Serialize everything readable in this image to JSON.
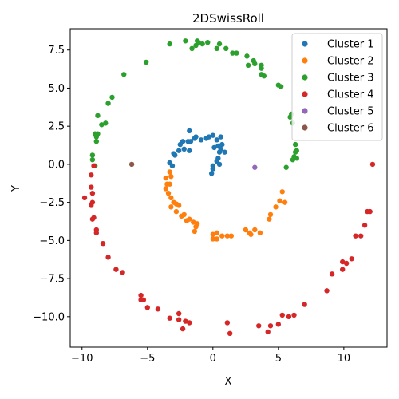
{
  "chart_data": {
    "type": "scatter",
    "title": "2DSwissRoll",
    "xlabel": "X",
    "ylabel": "Y",
    "xlim": [
      -10.9,
      13.3
    ],
    "ylim": [
      -12.0,
      8.9
    ],
    "xticks": [
      -10,
      -5,
      0,
      5,
      10
    ],
    "yticks": [
      -10.0,
      -7.5,
      -5.0,
      -2.5,
      0.0,
      2.5,
      5.0,
      7.5
    ],
    "ytick_labels": [
      "−10.0",
      "−7.5",
      "−5.0",
      "−2.5",
      "0.0",
      "2.5",
      "5.0",
      "7.5"
    ],
    "xtick_labels": [
      "−10",
      "−5",
      "0",
      "5",
      "10"
    ],
    "grid": false,
    "legend_position": "top-right",
    "series": [
      {
        "name": "Cluster 1",
        "color": "#1f77b4",
        "points": [
          [
            0.6,
            1.8
          ],
          [
            0.3,
            1.6
          ],
          [
            0.7,
            1.3
          ],
          [
            0.4,
            1.2
          ],
          [
            0.6,
            1.0
          ],
          [
            0.5,
            0.8
          ],
          [
            0.9,
            0.8
          ],
          [
            0.4,
            0.4
          ],
          [
            0.3,
            0.2
          ],
          [
            0.5,
            0.0
          ],
          [
            0.0,
            -0.1
          ],
          [
            0.0,
            -0.3
          ],
          [
            -0.1,
            -0.6
          ],
          [
            0.1,
            1.1
          ],
          [
            -0.3,
            1.8
          ],
          [
            0.0,
            1.9
          ],
          [
            -0.5,
            1.7
          ],
          [
            -0.9,
            1.6
          ],
          [
            -1.3,
            1.8
          ],
          [
            -1.4,
            1.7
          ],
          [
            -1.7,
            1.5
          ],
          [
            -1.9,
            1.5
          ],
          [
            -1.8,
            2.2
          ],
          [
            -2.3,
            1.5
          ],
          [
            -2.5,
            1.3
          ],
          [
            -2.2,
            1.0
          ],
          [
            -2.6,
            0.9
          ],
          [
            -2.9,
            0.6
          ],
          [
            -3.0,
            0.7
          ],
          [
            -3.3,
            0.1
          ],
          [
            -3.1,
            -0.1
          ],
          [
            -1.8,
            0.9
          ]
        ]
      },
      {
        "name": "Cluster 2",
        "color": "#ff7f0e",
        "points": [
          [
            -3.6,
            -0.9
          ],
          [
            -3.3,
            -0.5
          ],
          [
            -3.2,
            -0.8
          ],
          [
            -3.5,
            -1.3
          ],
          [
            -3.6,
            -1.6
          ],
          [
            -3.4,
            -1.9
          ],
          [
            -3.2,
            -2.2
          ],
          [
            -3.0,
            -2.5
          ],
          [
            -2.8,
            -2.6
          ],
          [
            -3.2,
            -2.8
          ],
          [
            -2.8,
            -3.1
          ],
          [
            -2.4,
            -3.4
          ],
          [
            -2.2,
            -3.3
          ],
          [
            -2.0,
            -3.7
          ],
          [
            -1.8,
            -3.6
          ],
          [
            -1.5,
            -3.8
          ],
          [
            -1.3,
            -4.1
          ],
          [
            -1.2,
            -3.9
          ],
          [
            -1.4,
            -4.4
          ],
          [
            0.0,
            -4.6
          ],
          [
            0.3,
            -4.5
          ],
          [
            0.3,
            -4.9
          ],
          [
            0.7,
            -4.7
          ],
          [
            1.1,
            -4.7
          ],
          [
            1.4,
            -4.7
          ],
          [
            0.0,
            -4.9
          ],
          [
            2.5,
            -4.3
          ],
          [
            2.8,
            -4.5
          ],
          [
            2.9,
            -4.6
          ],
          [
            3.2,
            -4.3
          ],
          [
            3.6,
            -4.5
          ],
          [
            4.3,
            -3.6
          ],
          [
            4.4,
            -3.3
          ],
          [
            4.8,
            -2.8
          ],
          [
            5.1,
            -2.4
          ],
          [
            5.5,
            -2.5
          ],
          [
            5.3,
            -1.8
          ],
          [
            -3.3,
            -1.3
          ],
          [
            -2.6,
            -2.7
          ]
        ]
      },
      {
        "name": "Cluster 3",
        "color": "#2ca02c",
        "points": [
          [
            -9.2,
            0.3
          ],
          [
            -9.2,
            0.6
          ],
          [
            -9.0,
            -0.1
          ],
          [
            -8.9,
            1.5
          ],
          [
            -8.9,
            1.8
          ],
          [
            -8.8,
            2.0
          ],
          [
            -9.0,
            2.0
          ],
          [
            -8.8,
            3.2
          ],
          [
            -8.5,
            2.6
          ],
          [
            -8.2,
            2.7
          ],
          [
            -8.0,
            4.0
          ],
          [
            -7.7,
            4.4
          ],
          [
            -6.8,
            5.9
          ],
          [
            -5.1,
            6.7
          ],
          [
            -3.3,
            7.9
          ],
          [
            -2.1,
            8.1
          ],
          [
            -1.6,
            7.6
          ],
          [
            -1.3,
            7.8
          ],
          [
            -1.1,
            8.0
          ],
          [
            -0.8,
            7.9
          ],
          [
            -0.4,
            8.0
          ],
          [
            0.3,
            7.6
          ],
          [
            0.5,
            7.9
          ],
          [
            1.0,
            7.6
          ],
          [
            1.5,
            7.3
          ],
          [
            1.8,
            7.3
          ],
          [
            2.6,
            7.1
          ],
          [
            3.1,
            6.8
          ],
          [
            2.7,
            6.5
          ],
          [
            3.2,
            6.6
          ],
          [
            3.7,
            6.5
          ],
          [
            3.7,
            6.3
          ],
          [
            3.7,
            5.9
          ],
          [
            3.9,
            5.8
          ],
          [
            5.0,
            5.2
          ],
          [
            5.2,
            5.1
          ],
          [
            5.9,
            3.1
          ],
          [
            6.0,
            3.3
          ],
          [
            6.1,
            2.7
          ],
          [
            6.3,
            1.3
          ],
          [
            6.4,
            0.9
          ],
          [
            6.3,
            0.8
          ],
          [
            6.2,
            0.5
          ],
          [
            6.1,
            0.3
          ],
          [
            6.4,
            0.4
          ],
          [
            5.6,
            -0.2
          ],
          [
            -1.2,
            8.1
          ]
        ]
      },
      {
        "name": "Cluster 4",
        "color": "#d62728",
        "points": [
          [
            -9.1,
            -0.1
          ],
          [
            -9.3,
            -0.7
          ],
          [
            -9.3,
            -1.5
          ],
          [
            -9.2,
            -1.9
          ],
          [
            -9.8,
            -2.2
          ],
          [
            -9.2,
            -2.5
          ],
          [
            -9.3,
            -2.7
          ],
          [
            -9.1,
            -3.5
          ],
          [
            -9.2,
            -3.6
          ],
          [
            -8.9,
            -4.3
          ],
          [
            -8.9,
            -4.5
          ],
          [
            -8.4,
            -5.2
          ],
          [
            -8.0,
            -6.1
          ],
          [
            -7.4,
            -6.9
          ],
          [
            -6.9,
            -7.1
          ],
          [
            -5.5,
            -8.6
          ],
          [
            -5.5,
            -8.9
          ],
          [
            -5.3,
            -8.9
          ],
          [
            -5.0,
            -9.4
          ],
          [
            -4.2,
            -9.5
          ],
          [
            -3.3,
            -10.1
          ],
          [
            -2.6,
            -9.8
          ],
          [
            -2.6,
            -10.2
          ],
          [
            -2.1,
            -10.3
          ],
          [
            -1.8,
            -10.4
          ],
          [
            -2.3,
            -10.8
          ],
          [
            1.1,
            -10.4
          ],
          [
            1.3,
            -11.1
          ],
          [
            3.5,
            -10.6
          ],
          [
            4.2,
            -11.0
          ],
          [
            4.4,
            -10.6
          ],
          [
            5.0,
            -10.5
          ],
          [
            5.3,
            -9.9
          ],
          [
            5.8,
            -10.0
          ],
          [
            6.2,
            -9.9
          ],
          [
            7.0,
            -9.2
          ],
          [
            8.7,
            -8.3
          ],
          [
            9.1,
            -7.2
          ],
          [
            9.9,
            -6.4
          ],
          [
            9.9,
            -6.9
          ],
          [
            10.2,
            -6.5
          ],
          [
            10.6,
            -6.2
          ],
          [
            10.9,
            -4.7
          ],
          [
            11.3,
            -4.7
          ],
          [
            11.6,
            -4.0
          ],
          [
            11.8,
            -3.1
          ],
          [
            12.0,
            -3.1
          ],
          [
            12.2,
            0.0
          ]
        ]
      },
      {
        "name": "Cluster 5",
        "color": "#9467bd",
        "points": [
          [
            3.2,
            -0.2
          ]
        ]
      },
      {
        "name": "Cluster 6",
        "color": "#8c564b",
        "points": [
          [
            -6.2,
            0.0
          ]
        ]
      }
    ]
  }
}
